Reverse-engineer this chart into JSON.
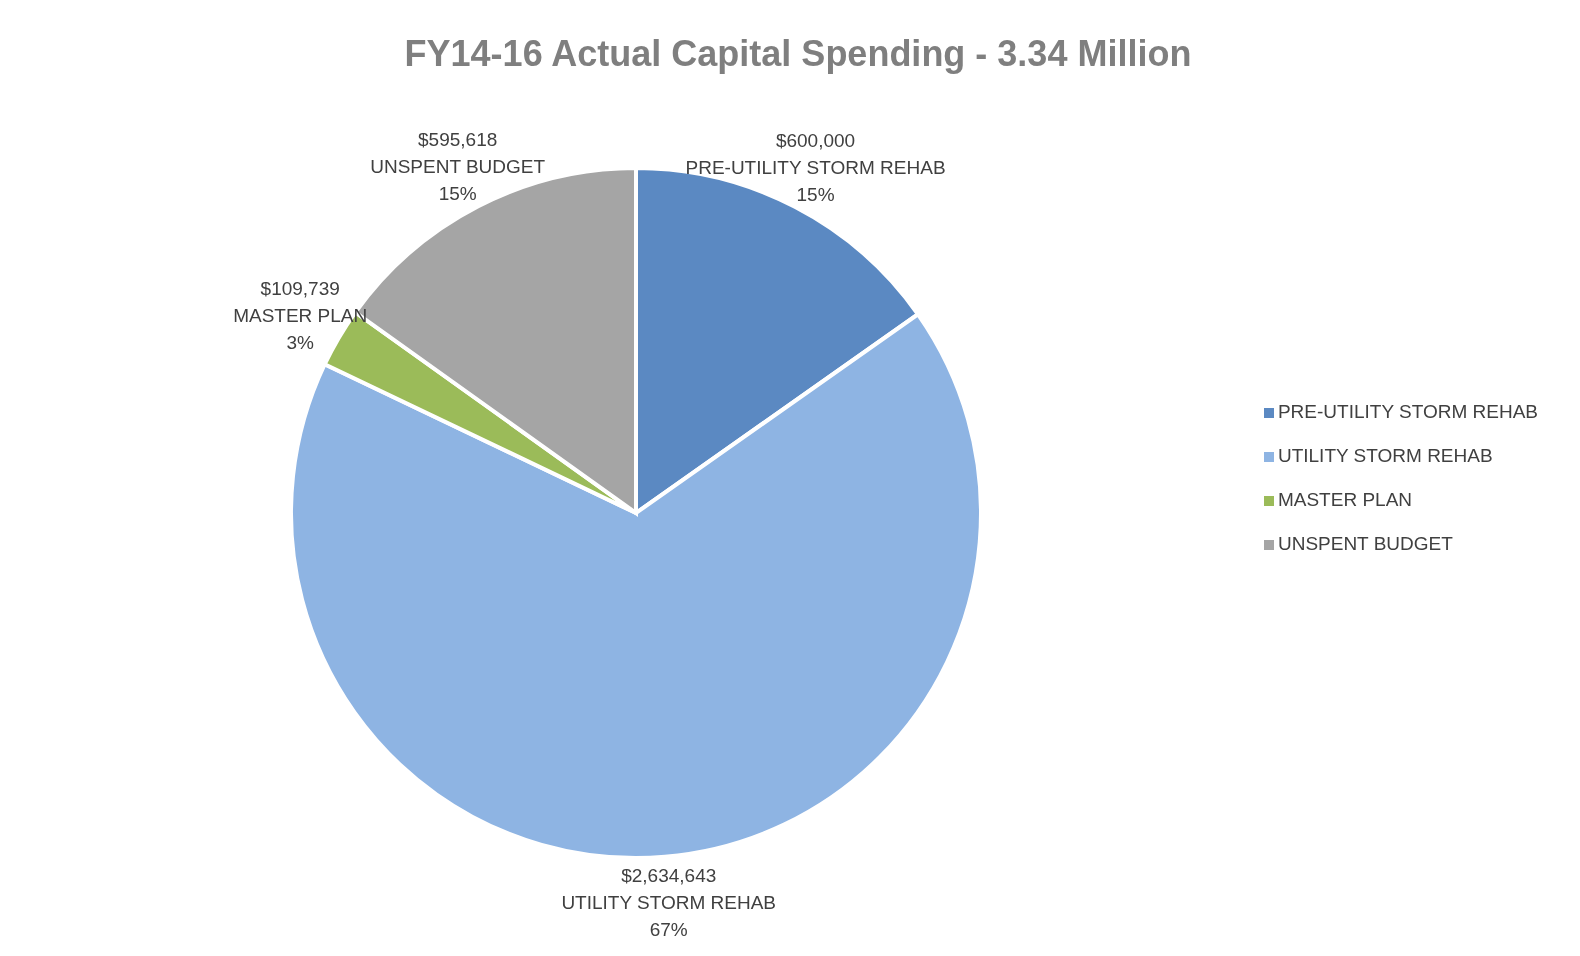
{
  "chart_data": {
    "type": "pie",
    "title": "FY14-16 Actual Capital Spending - 3.34 Million",
    "categories": [
      "PRE-UTILITY STORM REHAB",
      "UTILITY STORM REHAB",
      "MASTER PLAN",
      "UNSPENT BUDGET"
    ],
    "values": [
      600000,
      2634643,
      109739,
      595618
    ],
    "colors": [
      "#5b89c2",
      "#8eb4e3",
      "#9bbb59",
      "#a5a5a5"
    ],
    "value_labels": [
      "$600,000\nPRE-UTILITY STORM REHAB\n15%",
      "$2,634,643\nUTILITY STORM REHAB\n67%",
      "$109,739\nMASTER PLAN\n3%",
      "$595,618\nUNSPENT BUDGET\n15%"
    ],
    "legend": "right"
  }
}
